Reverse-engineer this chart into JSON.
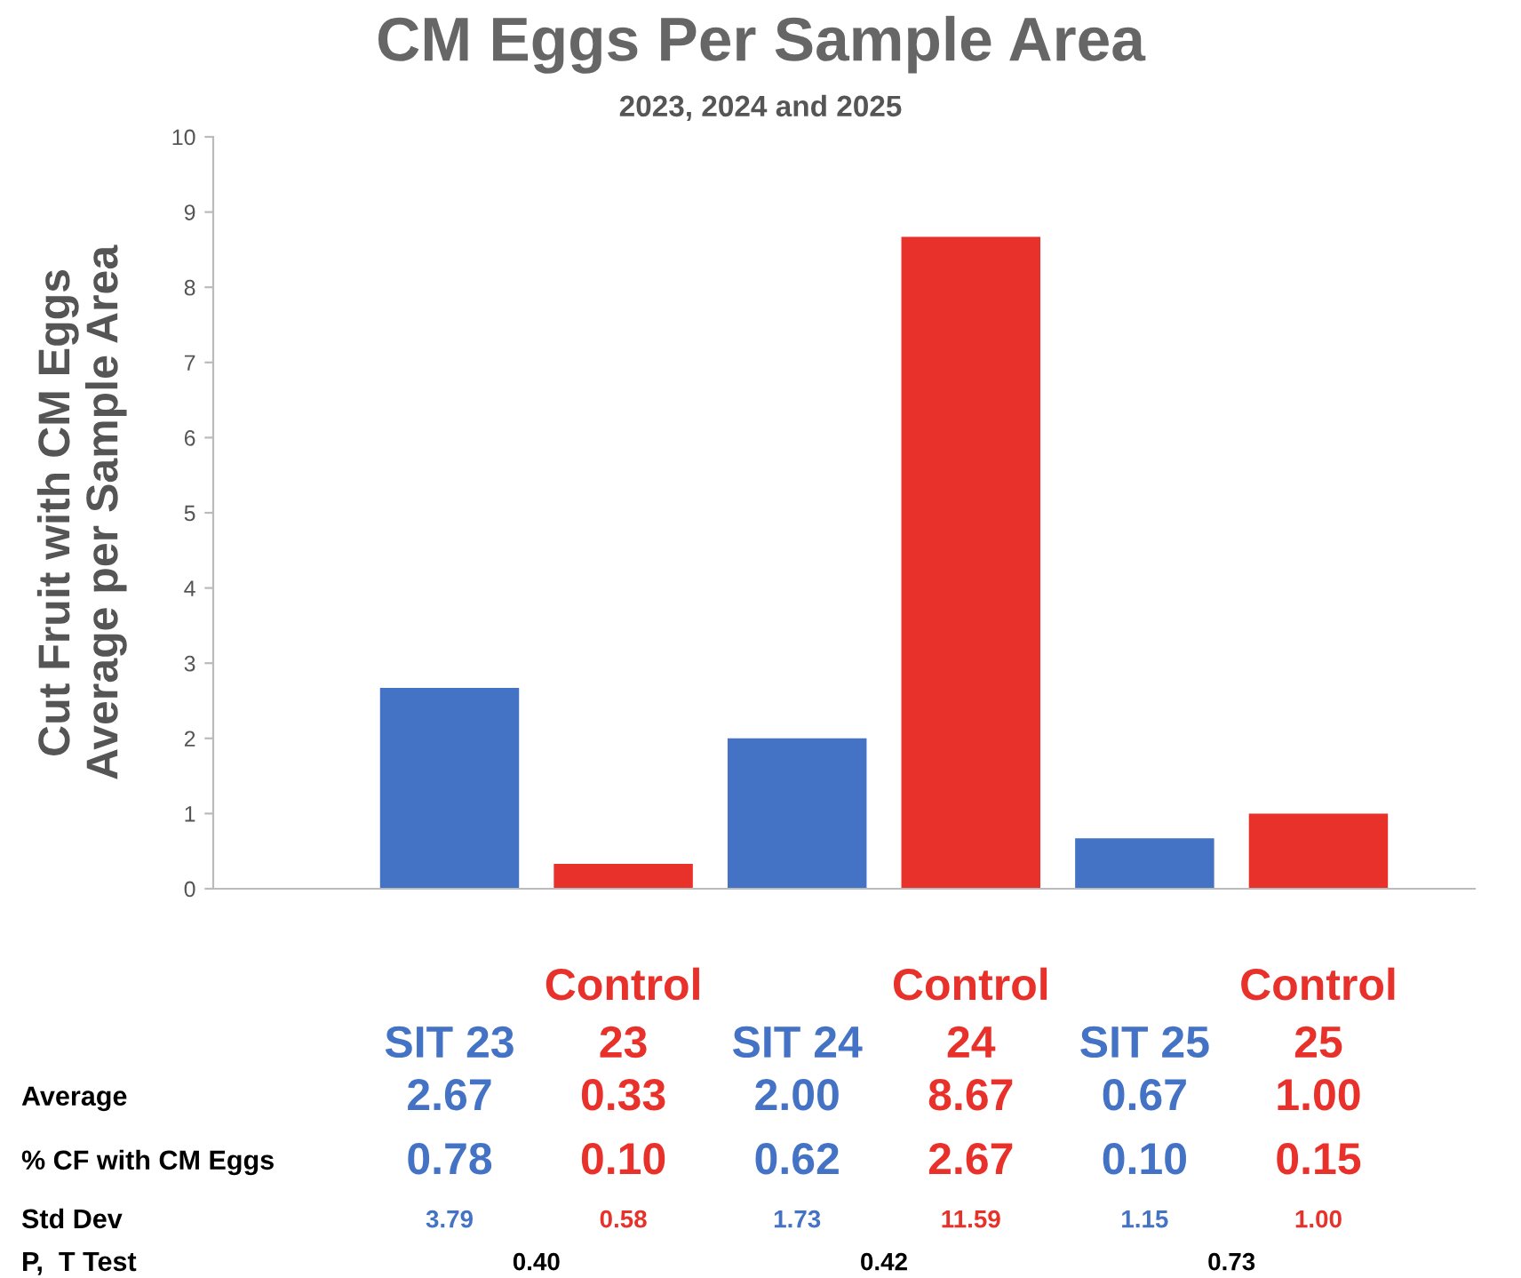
{
  "chart_data": {
    "type": "bar",
    "title": "CM Eggs Per Sample Area",
    "subtitle": "2023, 2024 and 2025",
    "ylabel": "Cut Fruit with CM Eggs\nAverage per Sample Area",
    "categories": [
      "SIT 23",
      "Control 23",
      "SIT 24",
      "Control 24",
      "SIT 25",
      "Control 25"
    ],
    "values": [
      2.67,
      0.33,
      2.0,
      8.67,
      0.67,
      1.0
    ],
    "colors": [
      "#4472c4",
      "#e8312a",
      "#4472c4",
      "#e8312a",
      "#4472c4",
      "#e8312a"
    ],
    "value_labels": [
      "2.67",
      "0.33",
      "2.00",
      "8.67",
      "0.67",
      "1.00"
    ],
    "ylim": [
      0,
      10
    ],
    "yticks": [
      0,
      1,
      2,
      3,
      4,
      5,
      6,
      7,
      8,
      9,
      10
    ],
    "grid": false,
    "legend": false,
    "annotations": [
      "Average",
      "% CF with CM Eggs",
      "0.78",
      "0.10",
      "0.62",
      "2.67",
      "0.10",
      "0.15",
      "Std Dev",
      "3.79",
      "0.58",
      "1.73",
      "11.59",
      "1.15",
      "1.00",
      "P,  T Test",
      "0.40",
      "0.42",
      "0.73"
    ]
  }
}
